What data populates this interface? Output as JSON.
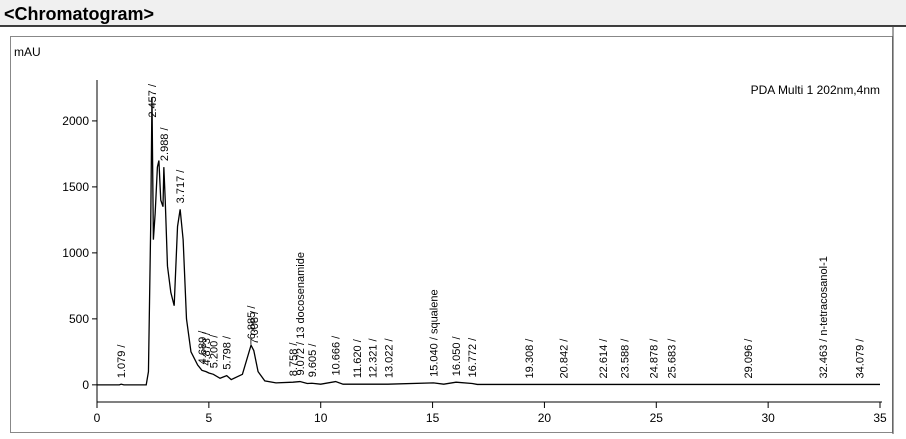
{
  "window_title": "<Chromatogram>",
  "chart_data": {
    "type": "line",
    "y_label": "mAU",
    "legend_text": "PDA Multi 1 202nm,4nm",
    "xlim": [
      0,
      35
    ],
    "xticks": [
      0,
      5,
      10,
      15,
      20,
      25,
      30,
      35
    ],
    "ylim": [
      -130,
      2310
    ],
    "yticks": [
      0,
      500,
      1000,
      1500,
      2000
    ],
    "series": [
      {
        "color": "#000000",
        "x": [
          0,
          1.0,
          1.079,
          1.2,
          2.2,
          2.3,
          2.4,
          2.457,
          2.52,
          2.6,
          2.7,
          2.767,
          2.85,
          2.95,
          2.988,
          3.05,
          3.15,
          3.3,
          3.45,
          3.6,
          3.717,
          3.85,
          4.0,
          4.2,
          4.5,
          4.689,
          4.873,
          5.0,
          5.2,
          5.5,
          5.798,
          6.0,
          6.5,
          6.885,
          7.008,
          7.2,
          7.5,
          8.0,
          8.758,
          9.072,
          9.4,
          9.605,
          10.0,
          10.666,
          11.0,
          13.0,
          15.04,
          15.5,
          16.05,
          16.772,
          17.0,
          35.0
        ],
        "values": [
          0,
          0,
          5,
          0,
          0,
          100,
          1200,
          2180,
          1100,
          1300,
          1650,
          1700,
          1400,
          1350,
          1650,
          1400,
          900,
          700,
          600,
          1200,
          1330,
          1100,
          500,
          250,
          150,
          110,
          100,
          90,
          80,
          50,
          70,
          40,
          80,
          300,
          260,
          100,
          30,
          15,
          20,
          25,
          10,
          12,
          5,
          25,
          5,
          5,
          15,
          5,
          20,
          10,
          3,
          3
        ]
      }
    ],
    "peaks": [
      {
        "x": 1.079,
        "label": "1.079 /"
      },
      {
        "x": 2.457,
        "label": "2.457 /"
      },
      {
        "x": 2.988,
        "label": "2.988 /"
      },
      {
        "x": 3.717,
        "label": "3.717 /"
      },
      {
        "x": 4.689,
        "label": "4.689 /"
      },
      {
        "x": 4.873,
        "label": "4.873 /"
      },
      {
        "x": 5.2,
        "label": "5.200 /"
      },
      {
        "x": 5.798,
        "label": "5.798 /"
      },
      {
        "x": 6.885,
        "label": "6.885 /"
      },
      {
        "x": 7.008,
        "label": "7.008 /"
      },
      {
        "x": 8.758,
        "label": "8.758 /"
      },
      {
        "x": 9.072,
        "label": "9.072 / 13 docosenamide"
      },
      {
        "x": 9.605,
        "label": "9.605 /"
      },
      {
        "x": 10.666,
        "label": "10.666 /"
      },
      {
        "x": 11.62,
        "label": "11.620 /"
      },
      {
        "x": 12.321,
        "label": "12.321 /"
      },
      {
        "x": 13.022,
        "label": "13.022 /"
      },
      {
        "x": 15.04,
        "label": "15.040 / squalene"
      },
      {
        "x": 16.05,
        "label": "16.050 /"
      },
      {
        "x": 16.772,
        "label": "16.772 /"
      },
      {
        "x": 19.308,
        "label": "19.308 /"
      },
      {
        "x": 20.842,
        "label": "20.842 /"
      },
      {
        "x": 22.614,
        "label": "22.614 /"
      },
      {
        "x": 23.588,
        "label": "23.588 /"
      },
      {
        "x": 24.878,
        "label": "24.878 /"
      },
      {
        "x": 25.683,
        "label": "25.683 /"
      },
      {
        "x": 29.096,
        "label": "29.096 /"
      },
      {
        "x": 32.463,
        "label": "32.463 / n-tetracosanol-1"
      },
      {
        "x": 34.079,
        "label": "34.079 /"
      }
    ]
  }
}
